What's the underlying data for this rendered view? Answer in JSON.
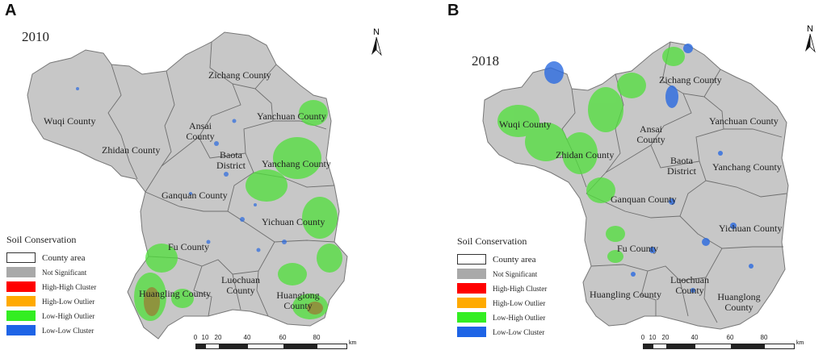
{
  "panels": [
    {
      "letter": "A",
      "year": "2010",
      "counties": {
        "wuqi": "Wuqi County",
        "zichang": "Zichang County",
        "ansai": "Ansai County",
        "yanchuan": "Yanchuan County",
        "zhidan": "Zhidan County",
        "baota": "Baota District",
        "yanchang": "Yanchang County",
        "ganquan": "Ganquan County",
        "yichuan": "Yichuan County",
        "fu": "Fu County",
        "luochuan": "Luochuan County",
        "huangling": "Huangling County",
        "huanglong": "Huanglong County"
      }
    },
    {
      "letter": "B",
      "year": "2018",
      "counties": {
        "wuqi": "Wuqi County",
        "zichang": "Zichang County",
        "ansai": "Ansai County",
        "yanchuan": "Yanchuan County",
        "zhidan": "Zhidan County",
        "baota": "Baota District",
        "yanchang": "Yanchang County",
        "ganquan": "Ganquan County",
        "yichuan": "Yichuan County",
        "fu": "Fu County",
        "luochuan": "Luochuan County",
        "huangling": "Huangling County",
        "huanglong": "Huanglong County"
      }
    }
  ],
  "north_label": "N",
  "legend": {
    "title": "Soil Conservation",
    "items": [
      {
        "label": "County area",
        "color": "#ffffff"
      },
      {
        "label": "Not Significant",
        "color": "#a9a9a9"
      },
      {
        "label": "High-High Cluster",
        "color": "#ff0000"
      },
      {
        "label": "High-Low Outlier",
        "color": "#ffaa00"
      },
      {
        "label": "Low-High Outlier",
        "color": "#33ee22"
      },
      {
        "label": "Low-Low Cluster",
        "color": "#1e64e6"
      }
    ]
  },
  "scale": {
    "ticks": [
      "0",
      "10",
      "20",
      "40",
      "60",
      "80"
    ],
    "unit": "km"
  },
  "colors": {
    "land": "#c7c7c7",
    "border": "#6e6e6e"
  }
}
